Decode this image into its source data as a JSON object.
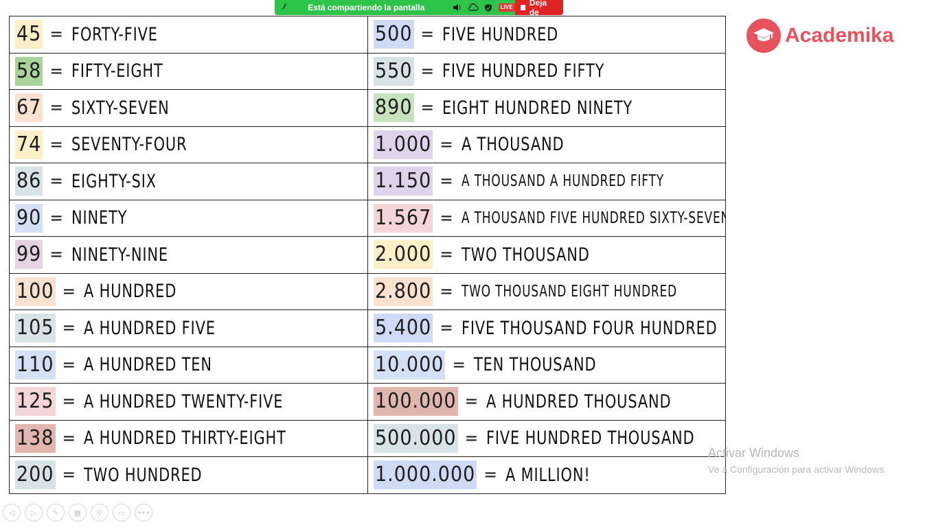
{
  "share_bar": {
    "text": "Está compartiendo la pantalla",
    "live_badge": "LIVE",
    "stop_label": "Deja de"
  },
  "logo": {
    "text": "Academika",
    "color": "#e8525c"
  },
  "watermark": {
    "title": "Activar Windows",
    "subtitle": "Ve a Configuración para activar Windows."
  },
  "rows": [
    {
      "left": {
        "num": "45",
        "word": "FORTY-FIVE",
        "color": "#fdf0c9"
      },
      "right": {
        "num": "500",
        "word": "FIVE HUNDRED",
        "color": "#cfdaf4"
      }
    },
    {
      "left": {
        "num": "58",
        "word": "FIFTY-EIGHT",
        "color": "#a9d39a"
      },
      "right": {
        "num": "550",
        "word": "FIVE HUNDRED FIFTY",
        "color": "#d7e3e4"
      }
    },
    {
      "left": {
        "num": "67",
        "word": "SIXTY-SEVEN",
        "color": "#fbe1cf"
      },
      "right": {
        "num": "890",
        "word": "EIGHT HUNDRED NINETY",
        "color": "#c6e2bf"
      }
    },
    {
      "left": {
        "num": "74",
        "word": "SEVENTY-FOUR",
        "color": "#fdf0c9"
      },
      "right": {
        "num": "1.000",
        "word": "A THOUSAND",
        "color": "#ddd3ea"
      }
    },
    {
      "left": {
        "num": "86",
        "word": "EIGHTY-SIX",
        "color": "#d7e3e4"
      },
      "right": {
        "num": "1.150",
        "word": "A THOUSAND A HUNDRED FIFTY",
        "color": "#ddd3ea",
        "small": true
      }
    },
    {
      "left": {
        "num": "90",
        "word": "NINETY",
        "color": "#d3e0f5"
      },
      "right": {
        "num": "1.567",
        "word": "A THOUSAND FIVE HUNDRED SIXTY-SEVEN",
        "color": "#f4d5d8",
        "small": true
      }
    },
    {
      "left": {
        "num": "99",
        "word": "NINETY-NINE",
        "color": "#e6d3e1"
      },
      "right": {
        "num": "2.000",
        "word": "TWO THOUSAND",
        "color": "#fdf0c9"
      }
    },
    {
      "left": {
        "num": "100",
        "word": "A HUNDRED",
        "color": "#fbe1cf"
      },
      "right": {
        "num": "2.800",
        "word": "TWO THOUSAND EIGHT HUNDRED",
        "color": "#fbe1cf",
        "small": true
      }
    },
    {
      "left": {
        "num": "105",
        "word": "A HUNDRED FIVE",
        "color": "#d7e3e4"
      },
      "right": {
        "num": "5.400",
        "word": "FIVE THOUSAND FOUR HUNDRED",
        "color": "#cfdaf4"
      }
    },
    {
      "left": {
        "num": "110",
        "word": "A HUNDRED TEN",
        "color": "#d3e0f5"
      },
      "right": {
        "num": "10.000",
        "word": "TEN THOUSAND",
        "color": "#d3e0f5"
      }
    },
    {
      "left": {
        "num": "125",
        "word": "A HUNDRED TWENTY-FIVE",
        "color": "#f4d5d8"
      },
      "right": {
        "num": "100.000",
        "word": "A HUNDRED THOUSAND",
        "color": "#e0b6ae"
      }
    },
    {
      "left": {
        "num": "138",
        "word": "A HUNDRED THIRTY-EIGHT",
        "color": "#e0b6ae"
      },
      "right": {
        "num": "500.000",
        "word": "FIVE HUNDRED THOUSAND",
        "color": "#d7e3e4"
      }
    },
    {
      "left": {
        "num": "200",
        "word": "TWO HUNDRED",
        "color": "#d7e3e4"
      },
      "right": {
        "num": "1.000.000",
        "word": "A MILLION!",
        "color": "#cfdaf4"
      }
    }
  ],
  "toolbar": {
    "buttons": [
      {
        "name": "back-icon",
        "glyph": "◁"
      },
      {
        "name": "forward-icon",
        "glyph": "▷"
      },
      {
        "name": "pen-icon",
        "glyph": "✎"
      },
      {
        "name": "pages-icon",
        "glyph": "▦"
      },
      {
        "name": "zoom-icon",
        "glyph": "⚲"
      },
      {
        "name": "keyboard-icon",
        "glyph": "▭"
      },
      {
        "name": "more-icon",
        "glyph": "•••"
      }
    ]
  }
}
